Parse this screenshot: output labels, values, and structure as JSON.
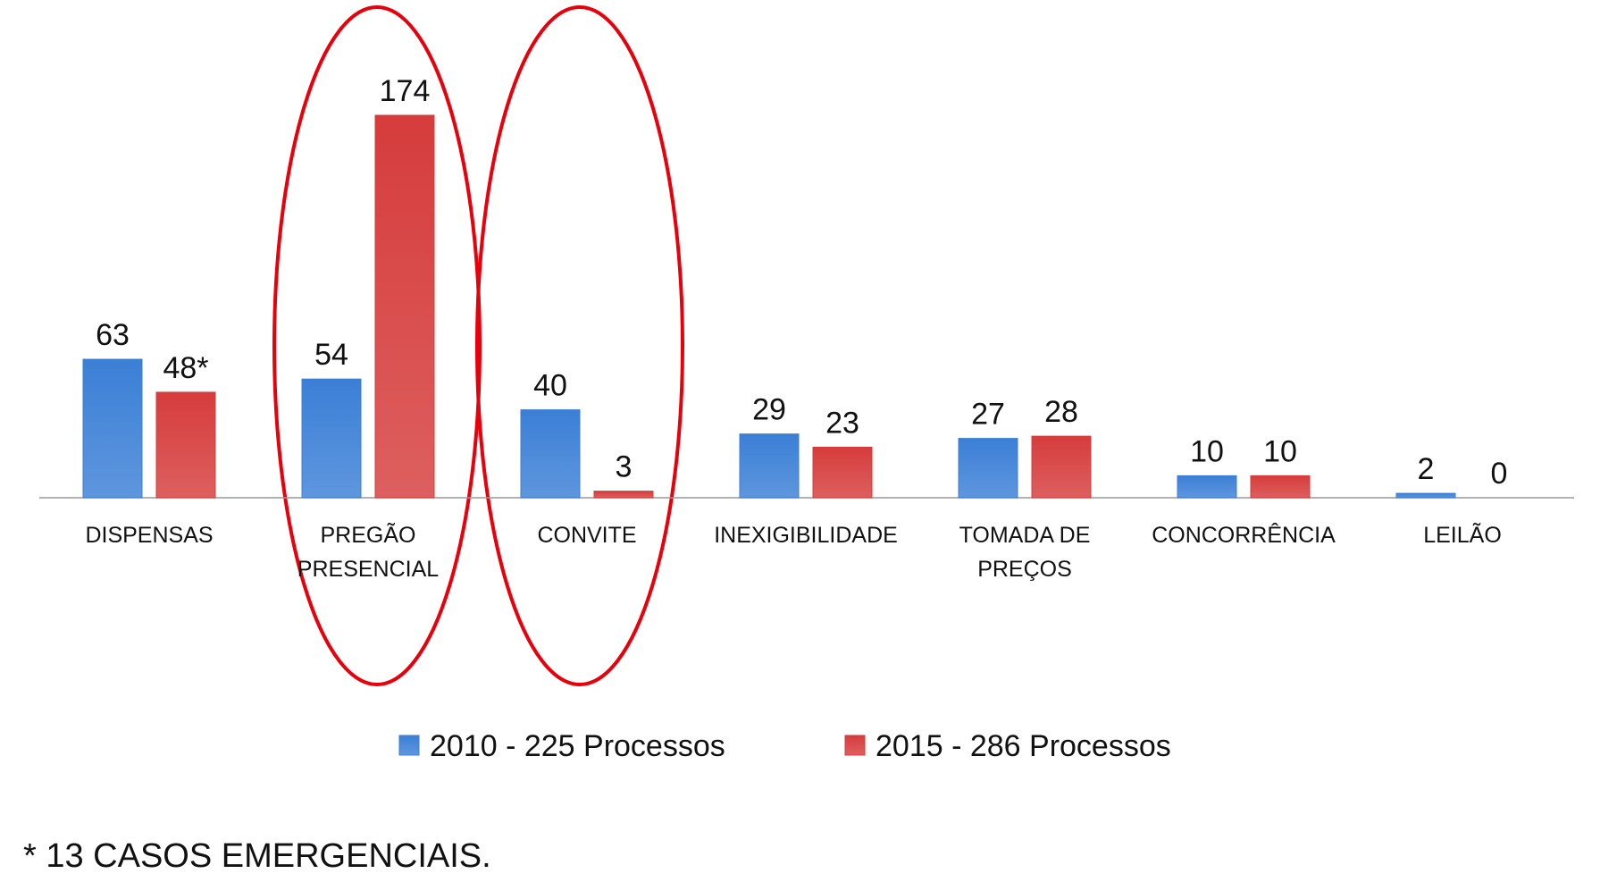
{
  "chart_data": {
    "type": "bar",
    "categories": [
      "DISPENSAS",
      "PREGÃO\nPRESENCIAL",
      "CONVITE",
      "INEXIGIBILIDADE",
      "TOMADA DE\nPREÇOS",
      "CONCORRÊNCIA",
      "LEILÃO"
    ],
    "series": [
      {
        "name": "2010 - 225 Processos",
        "color": "#3b7fd6",
        "values": [
          63,
          54,
          40,
          29,
          27,
          10,
          2
        ]
      },
      {
        "name": "2015 - 286 Processos",
        "color": "#d63c3c",
        "values": [
          48,
          174,
          3,
          23,
          28,
          10,
          0
        ],
        "value_labels": [
          "48*",
          "174",
          "3",
          "23",
          "28",
          "10",
          "0"
        ]
      }
    ],
    "legend": "bottom",
    "footnote": "* 13 CASOS EMERGENCIAIS."
  }
}
